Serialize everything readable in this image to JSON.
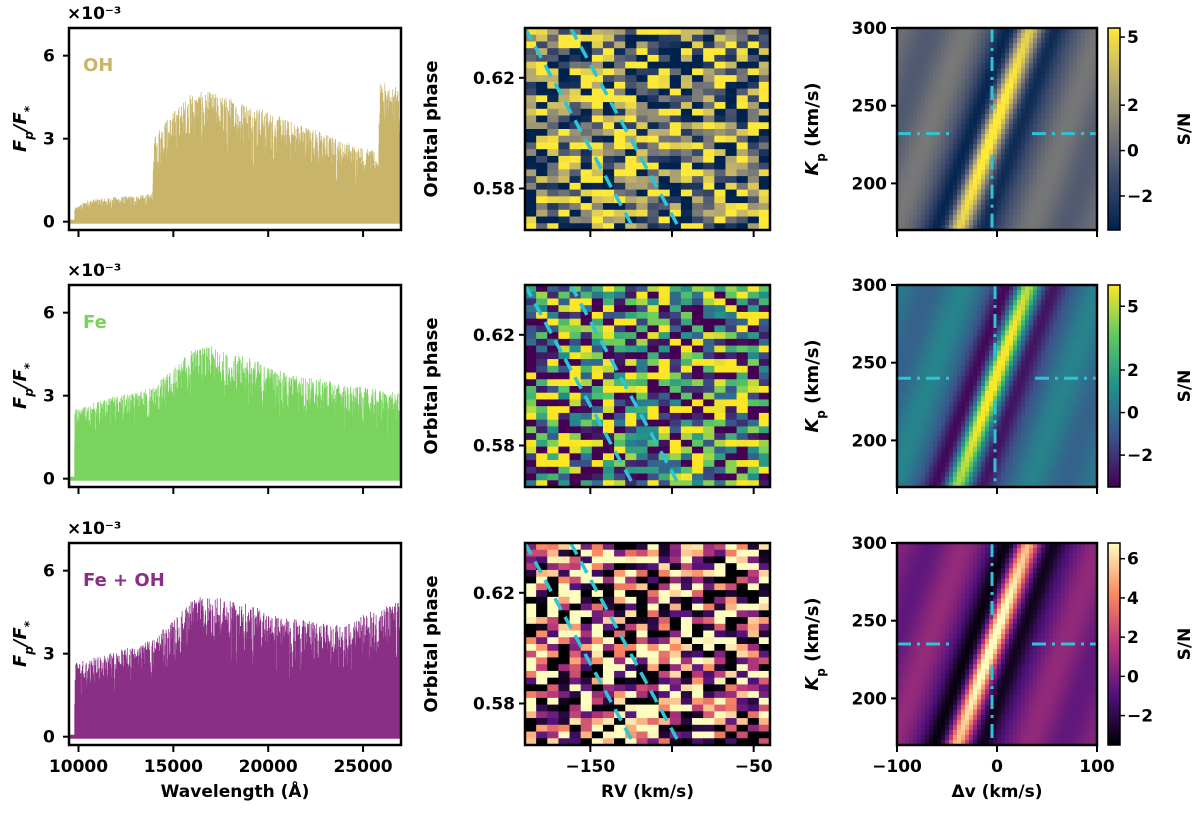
{
  "chart_data": {
    "type": "figure-grid",
    "rows": [
      {
        "species": "OH",
        "label_color": "#c9b56a",
        "spectrum": {
          "type": "bar",
          "xlabel": "",
          "ylabel": "F_p/F_*",
          "offset_text": "×10^-3",
          "xlim": [
            9500,
            27000
          ],
          "ylim": [
            -0.3,
            7.0
          ],
          "xticks": [
            10000,
            15000,
            20000,
            25000
          ],
          "yticks": [
            0,
            3,
            6
          ],
          "envelope_x": [
            9800,
            10500,
            12000,
            13900,
            14000,
            15000,
            16000,
            17000,
            18000,
            19000,
            20000,
            21000,
            22000,
            23000,
            24000,
            25000,
            25800,
            25900,
            26500,
            26900
          ],
          "envelope_y": [
            0.5,
            0.8,
            0.9,
            1.0,
            3.2,
            4.0,
            4.7,
            4.7,
            4.5,
            4.3,
            4.0,
            3.7,
            3.5,
            3.2,
            2.9,
            2.7,
            2.5,
            5.0,
            5.0,
            4.8
          ]
        },
        "trail": {
          "type": "heatmap",
          "xlabel": "",
          "ylabel": "Orbital phase",
          "xlim": [
            -190,
            -40
          ],
          "ylim": [
            0.565,
            0.638
          ],
          "xticks": [
            -150,
            -50
          ],
          "yticks": [
            "0.58",
            "0.62"
          ]
        },
        "kp_map": {
          "type": "heatmap",
          "xlabel": "",
          "ylabel": "K_p (km/s)",
          "xlim": [
            -100,
            100
          ],
          "ylim": [
            170,
            300
          ],
          "xticks": [
            -100,
            0,
            100
          ],
          "yticks": [
            200,
            250,
            300
          ],
          "peak_dv": -5,
          "peak_kp": 232,
          "colorbar": {
            "label": "S/N",
            "ticks": [
              -2,
              0,
              2,
              5
            ],
            "range": [
              -3.5,
              5.4
            ]
          }
        }
      },
      {
        "species": "Fe",
        "label_color": "#79d35c",
        "spectrum": {
          "type": "bar",
          "xlabel": "",
          "ylabel": "F_p/F_*",
          "offset_text": "×10^-3",
          "xlim": [
            9500,
            27000
          ],
          "ylim": [
            -0.3,
            7.0
          ],
          "xticks": [
            10000,
            15000,
            20000,
            25000
          ],
          "yticks": [
            0,
            3,
            6
          ],
          "envelope_x": [
            9800,
            11000,
            12000,
            13000,
            14000,
            15000,
            16000,
            17000,
            18000,
            19000,
            20000,
            21000,
            22000,
            23000,
            24000,
            25000,
            26000,
            26900
          ],
          "envelope_y": [
            2.5,
            2.8,
            3.0,
            3.1,
            3.4,
            4.0,
            4.7,
            4.8,
            4.5,
            4.4,
            4.1,
            3.8,
            3.7,
            3.6,
            3.4,
            3.3,
            3.2,
            3.1
          ]
        },
        "trail": {
          "type": "heatmap",
          "xlabel": "",
          "ylabel": "Orbital phase",
          "xlim": [
            -190,
            -40
          ],
          "ylim": [
            0.565,
            0.638
          ],
          "xticks": [
            -150,
            -50
          ],
          "yticks": [
            "0.58",
            "0.62"
          ]
        },
        "kp_map": {
          "type": "heatmap",
          "xlabel": "",
          "ylabel": "K_p (km/s)",
          "xlim": [
            -100,
            100
          ],
          "ylim": [
            170,
            300
          ],
          "xticks": [
            -100,
            0,
            100
          ],
          "yticks": [
            200,
            250,
            300
          ],
          "peak_dv": -2,
          "peak_kp": 240,
          "colorbar": {
            "label": "S/N",
            "ticks": [
              -2,
              0,
              2,
              5
            ],
            "range": [
              -3.5,
              6.0
            ]
          }
        }
      },
      {
        "species": "Fe + OH",
        "label_color": "#8a2f86",
        "spectrum": {
          "type": "bar",
          "xlabel": "Wavelength (Å)",
          "ylabel": "F_p/F_*",
          "offset_text": "×10^-3",
          "xlim": [
            9500,
            27000
          ],
          "ylim": [
            -0.3,
            7.0
          ],
          "xticks": [
            10000,
            15000,
            20000,
            25000
          ],
          "yticks": [
            0,
            3,
            6
          ],
          "envelope_x": [
            9800,
            11000,
            12000,
            13000,
            14000,
            15000,
            16000,
            17000,
            18000,
            19000,
            20000,
            21000,
            22000,
            23000,
            24000,
            25000,
            26000,
            26900
          ],
          "envelope_y": [
            2.7,
            2.9,
            3.1,
            3.3,
            3.6,
            4.2,
            5.0,
            5.1,
            4.9,
            4.8,
            4.5,
            4.3,
            4.2,
            4.1,
            4.0,
            4.4,
            4.7,
            4.9
          ]
        },
        "trail": {
          "type": "heatmap",
          "xlabel": "RV (km/s)",
          "ylabel": "Orbital phase",
          "xlim": [
            -190,
            -40
          ],
          "ylim": [
            0.565,
            0.638
          ],
          "xticks": [
            -150,
            -50
          ],
          "yticks": [
            "0.58",
            "0.62"
          ]
        },
        "kp_map": {
          "type": "heatmap",
          "xlabel": "Δv (km/s)",
          "ylabel": "K_p (km/s)",
          "xlim": [
            -100,
            100
          ],
          "ylim": [
            170,
            300
          ],
          "xticks": [
            -100,
            0,
            100
          ],
          "yticks": [
            200,
            250,
            300
          ],
          "peak_dv": -5,
          "peak_kp": 235,
          "colorbar": {
            "label": "S/N",
            "ticks": [
              -2,
              0,
              2,
              4,
              6
            ],
            "range": [
              -3.5,
              6.8
            ]
          }
        }
      }
    ],
    "trail_guides": {
      "note": "dashed cyan lines bracketing the planet trail",
      "left_line": {
        "rv_top": -190,
        "rv_bottom": -123
      },
      "right_line": {
        "rv_top": -162,
        "rv_bottom": -95
      },
      "color": "#2ec4d6"
    }
  },
  "labels": {
    "offset_text": "×10⁻³",
    "flux_label": "F",
    "flux_sub": "p",
    "flux_den": "/F",
    "flux_star": "*",
    "phase_label": "Orbital phase",
    "kp_label": "K",
    "kp_sub": "p",
    "kp_unit": " (km/s)",
    "sn_label": "S/N",
    "wavelength_label": "Wavelength (Å)",
    "rv_label": "RV (km/s)",
    "dv_label": "Δv (km/s)"
  }
}
